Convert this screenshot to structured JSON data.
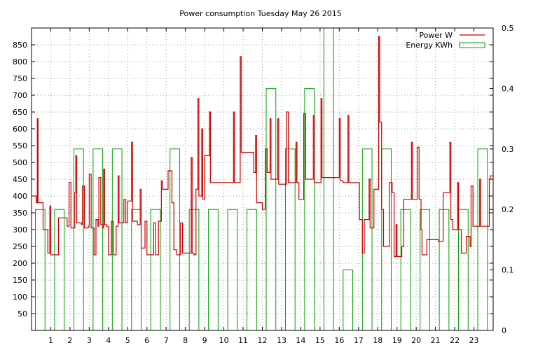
{
  "chart_data": {
    "type": "line",
    "title": "Power consumption Tuesday May 26 2015",
    "grid": true,
    "legend_position": "top-right",
    "x": {
      "range": [
        0,
        24
      ],
      "tick_values": [
        1,
        2,
        3,
        4,
        5,
        6,
        7,
        8,
        9,
        10,
        11,
        12,
        13,
        14,
        15,
        16,
        17,
        18,
        19,
        20,
        21,
        22,
        23
      ]
    },
    "y_left": {
      "range": [
        0,
        900
      ],
      "tick_values": [
        50,
        100,
        150,
        200,
        250,
        300,
        350,
        400,
        450,
        500,
        550,
        600,
        650,
        700,
        750,
        800,
        850
      ]
    },
    "y_right": {
      "range": [
        0,
        0.5
      ],
      "tick_labels": [
        "0",
        "0.1",
        "0.2",
        "0.3",
        "0.4",
        "0.5"
      ],
      "tick_values": [
        0,
        0.1,
        0.2,
        0.3,
        0.4,
        0.5
      ]
    },
    "series": [
      {
        "name": "Power W",
        "axis": "left",
        "style": "step-line",
        "color": "#cc0000",
        "points": [
          [
            0.0,
            400
          ],
          [
            0.25,
            380
          ],
          [
            0.3,
            630
          ],
          [
            0.34,
            380
          ],
          [
            0.6,
            300
          ],
          [
            0.85,
            230
          ],
          [
            0.95,
            370
          ],
          [
            1.0,
            225
          ],
          [
            1.4,
            335
          ],
          [
            1.85,
            310
          ],
          [
            1.95,
            440
          ],
          [
            2.05,
            305
          ],
          [
            2.25,
            410
          ],
          [
            2.3,
            520
          ],
          [
            2.35,
            320
          ],
          [
            2.6,
            315
          ],
          [
            2.65,
            430
          ],
          [
            2.75,
            305
          ],
          [
            2.95,
            310
          ],
          [
            3.0,
            465
          ],
          [
            3.1,
            305
          ],
          [
            3.25,
            225
          ],
          [
            3.35,
            330
          ],
          [
            3.45,
            310
          ],
          [
            3.5,
            455
          ],
          [
            3.6,
            315
          ],
          [
            3.7,
            305
          ],
          [
            3.75,
            480
          ],
          [
            3.8,
            315
          ],
          [
            3.9,
            310
          ],
          [
            4.0,
            225
          ],
          [
            4.15,
            325
          ],
          [
            4.25,
            225
          ],
          [
            4.4,
            310
          ],
          [
            4.5,
            460
          ],
          [
            4.55,
            320
          ],
          [
            4.8,
            390
          ],
          [
            4.9,
            320
          ],
          [
            5.0,
            385
          ],
          [
            5.2,
            560
          ],
          [
            5.25,
            325
          ],
          [
            5.5,
            315
          ],
          [
            5.65,
            420
          ],
          [
            5.7,
            245
          ],
          [
            5.9,
            325
          ],
          [
            6.0,
            225
          ],
          [
            6.35,
            320
          ],
          [
            6.45,
            225
          ],
          [
            6.6,
            325
          ],
          [
            6.75,
            445
          ],
          [
            6.8,
            420
          ],
          [
            6.95,
            420
          ],
          [
            7.1,
            475
          ],
          [
            7.3,
            380
          ],
          [
            7.4,
            240
          ],
          [
            7.55,
            225
          ],
          [
            7.75,
            320
          ],
          [
            7.85,
            230
          ],
          [
            8.3,
            515
          ],
          [
            8.35,
            230
          ],
          [
            8.45,
            225
          ],
          [
            8.55,
            420
          ],
          [
            8.65,
            690
          ],
          [
            8.7,
            400
          ],
          [
            8.85,
            600
          ],
          [
            8.9,
            390
          ],
          [
            9.0,
            520
          ],
          [
            9.25,
            650
          ],
          [
            9.3,
            440
          ],
          [
            9.8,
            440
          ],
          [
            10.0,
            440
          ],
          [
            10.5,
            650
          ],
          [
            10.55,
            440
          ],
          [
            10.85,
            815
          ],
          [
            10.9,
            530
          ],
          [
            11.25,
            530
          ],
          [
            11.55,
            470
          ],
          [
            11.65,
            580
          ],
          [
            11.7,
            380
          ],
          [
            12.0,
            360
          ],
          [
            12.15,
            540
          ],
          [
            12.25,
            470
          ],
          [
            12.4,
            630
          ],
          [
            12.45,
            450
          ],
          [
            12.8,
            630
          ],
          [
            12.85,
            435
          ],
          [
            13.25,
            650
          ],
          [
            13.35,
            440
          ],
          [
            13.6,
            440
          ],
          [
            13.75,
            560
          ],
          [
            13.8,
            440
          ],
          [
            13.9,
            390
          ],
          [
            14.0,
            390
          ],
          [
            14.15,
            645
          ],
          [
            14.25,
            450
          ],
          [
            14.55,
            450
          ],
          [
            14.65,
            640
          ],
          [
            14.7,
            440
          ],
          [
            15.05,
            690
          ],
          [
            15.1,
            455
          ],
          [
            15.8,
            455
          ],
          [
            16.0,
            630
          ],
          [
            16.05,
            445
          ],
          [
            16.2,
            440
          ],
          [
            16.45,
            640
          ],
          [
            16.5,
            440
          ],
          [
            16.95,
            440
          ],
          [
            17.05,
            330
          ],
          [
            17.2,
            230
          ],
          [
            17.3,
            330
          ],
          [
            17.55,
            450
          ],
          [
            17.6,
            305
          ],
          [
            17.7,
            305
          ],
          [
            17.8,
            420
          ],
          [
            18.05,
            875
          ],
          [
            18.1,
            620
          ],
          [
            18.2,
            360
          ],
          [
            18.3,
            250
          ],
          [
            18.5,
            250
          ],
          [
            18.6,
            440
          ],
          [
            18.75,
            410
          ],
          [
            18.85,
            220
          ],
          [
            18.95,
            315
          ],
          [
            19.0,
            220
          ],
          [
            19.25,
            250
          ],
          [
            19.35,
            390
          ],
          [
            19.75,
            560
          ],
          [
            19.8,
            390
          ],
          [
            19.95,
            390
          ],
          [
            20.05,
            545
          ],
          [
            20.15,
            390
          ],
          [
            20.25,
            300
          ],
          [
            20.3,
            225
          ],
          [
            20.4,
            225
          ],
          [
            20.55,
            270
          ],
          [
            20.7,
            270
          ],
          [
            20.95,
            270
          ],
          [
            21.15,
            265
          ],
          [
            21.4,
            410
          ],
          [
            21.65,
            410
          ],
          [
            21.75,
            560
          ],
          [
            21.8,
            330
          ],
          [
            21.9,
            300
          ],
          [
            22.15,
            440
          ],
          [
            22.2,
            300
          ],
          [
            22.35,
            230
          ],
          [
            22.55,
            230
          ],
          [
            22.6,
            280
          ],
          [
            22.7,
            280
          ],
          [
            22.8,
            250
          ],
          [
            22.85,
            430
          ],
          [
            22.95,
            310
          ],
          [
            23.3,
            450
          ],
          [
            23.35,
            310
          ],
          [
            23.7,
            310
          ],
          [
            23.8,
            450
          ],
          [
            23.85,
            460
          ]
        ]
      },
      {
        "name": "Energy KWh",
        "axis": "right",
        "style": "steps-hourly",
        "color": "#00a000",
        "values": [
          0.2,
          0.2,
          0.3,
          0.3,
          0.3,
          0.2,
          0.2,
          0.3,
          0.2,
          0.2,
          0.2,
          0.2,
          0.4,
          0.3,
          0.4,
          0.5,
          0.1,
          0.3,
          0.3,
          0.2,
          0.2,
          0.2,
          0.2,
          0.3
        ]
      }
    ]
  }
}
